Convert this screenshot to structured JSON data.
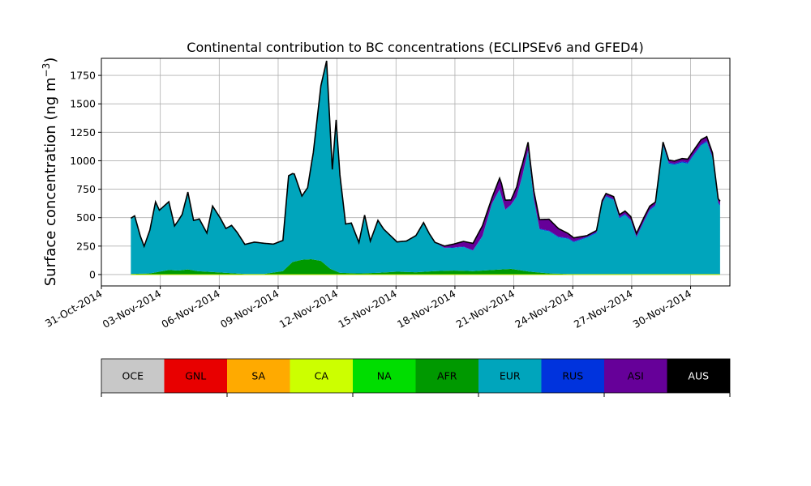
{
  "chart_data": {
    "type": "area",
    "stacked": true,
    "title": "Continental contribution to BC concentrations (ECLIPSEv6 and GFED4)",
    "ylabel_main": "Surface concentration (ng m",
    "ylabel_sup": "−3",
    "ylabel_end": ")",
    "xlim": [
      "2014-10-31",
      "2014-12-02"
    ],
    "ylim": [
      -100,
      1900
    ],
    "grid": true,
    "x_ticks": [
      "31-Oct-2014",
      "03-Nov-2014",
      "06-Nov-2014",
      "09-Nov-2014",
      "12-Nov-2014",
      "15-Nov-2014",
      "18-Nov-2014",
      "21-Nov-2014",
      "24-Nov-2014",
      "27-Nov-2014",
      "30-Nov-2014"
    ],
    "y_ticks": [
      0,
      250,
      500,
      750,
      1000,
      1250,
      1500,
      1750
    ],
    "x_start": "2014-11-01T12:00",
    "x_end": "2014-12-01T12:00",
    "total_outline_color": "#000000",
    "series": [
      {
        "name": "AFR",
        "color": "#009900",
        "points": [
          [
            0,
            5
          ],
          [
            1,
            10
          ],
          [
            1.5,
            25
          ],
          [
            2,
            40
          ],
          [
            2.5,
            35
          ],
          [
            3,
            45
          ],
          [
            3.5,
            30
          ],
          [
            4,
            25
          ],
          [
            5,
            15
          ],
          [
            6,
            5
          ],
          [
            7,
            5
          ],
          [
            8,
            30
          ],
          [
            8.5,
            110
          ],
          [
            9,
            130
          ],
          [
            9.5,
            135
          ],
          [
            10,
            120
          ],
          [
            10.5,
            50
          ],
          [
            11,
            15
          ],
          [
            12,
            10
          ],
          [
            13,
            15
          ],
          [
            14,
            25
          ],
          [
            15,
            20
          ],
          [
            16,
            30
          ],
          [
            17,
            35
          ],
          [
            18,
            30
          ],
          [
            19,
            40
          ],
          [
            20,
            50
          ],
          [
            21,
            25
          ],
          [
            22,
            10
          ],
          [
            23,
            5
          ],
          [
            24,
            5
          ],
          [
            25,
            5
          ],
          [
            26,
            5
          ],
          [
            27,
            5
          ],
          [
            28,
            5
          ],
          [
            29,
            5
          ],
          [
            30,
            5
          ]
        ]
      },
      {
        "name": "EUR",
        "color": "#00A5BC",
        "points": [
          [
            0,
            490
          ],
          [
            0.2,
            510
          ],
          [
            0.5,
            330
          ],
          [
            0.7,
            240
          ],
          [
            1,
            380
          ],
          [
            1.3,
            620
          ],
          [
            1.5,
            540
          ],
          [
            2,
            600
          ],
          [
            2.3,
            390
          ],
          [
            2.7,
            490
          ],
          [
            3,
            680
          ],
          [
            3.3,
            440
          ],
          [
            3.6,
            460
          ],
          [
            4,
            340
          ],
          [
            4.3,
            580
          ],
          [
            4.7,
            480
          ],
          [
            5,
            390
          ],
          [
            5.3,
            420
          ],
          [
            5.6,
            360
          ],
          [
            6,
            260
          ],
          [
            6.5,
            280
          ],
          [
            7,
            270
          ],
          [
            7.5,
            250
          ],
          [
            8,
            270
          ],
          [
            8.3,
            790
          ],
          [
            8.6,
            770
          ],
          [
            9,
            560
          ],
          [
            9.3,
            630
          ],
          [
            9.6,
            940
          ],
          [
            10,
            1540
          ],
          [
            10.3,
            1800
          ],
          [
            10.6,
            880
          ],
          [
            10.8,
            1330
          ],
          [
            11,
            860
          ],
          [
            11.3,
            430
          ],
          [
            11.6,
            440
          ],
          [
            12,
            270
          ],
          [
            12.3,
            510
          ],
          [
            12.6,
            280
          ],
          [
            13,
            460
          ],
          [
            13.3,
            380
          ],
          [
            14,
            260
          ],
          [
            14.5,
            270
          ],
          [
            15,
            320
          ],
          [
            15.4,
            430
          ],
          [
            15.7,
            330
          ],
          [
            16,
            250
          ],
          [
            16.5,
            200
          ],
          [
            17,
            200
          ],
          [
            17.5,
            210
          ],
          [
            18,
            180
          ],
          [
            18.5,
            300
          ],
          [
            19,
            580
          ],
          [
            19.4,
            700
          ],
          [
            19.7,
            520
          ],
          [
            20,
            560
          ],
          [
            20.3,
            640
          ],
          [
            20.6,
            830
          ],
          [
            20.9,
            1060
          ],
          [
            21.2,
            640
          ],
          [
            21.5,
            380
          ],
          [
            22,
            370
          ],
          [
            22.5,
            320
          ],
          [
            23,
            310
          ],
          [
            23.3,
            280
          ],
          [
            24,
            320
          ],
          [
            24.5,
            360
          ],
          [
            24.8,
            620
          ],
          [
            25,
            680
          ],
          [
            25.4,
            650
          ],
          [
            25.7,
            490
          ],
          [
            26,
            520
          ],
          [
            26.3,
            470
          ],
          [
            26.6,
            320
          ],
          [
            27,
            460
          ],
          [
            27.3,
            560
          ],
          [
            27.6,
            600
          ],
          [
            28,
            1130
          ],
          [
            28.3,
            970
          ],
          [
            28.6,
            960
          ],
          [
            29,
            980
          ],
          [
            29.3,
            970
          ],
          [
            29.6,
            1040
          ],
          [
            30,
            1130
          ],
          [
            30.3,
            1160
          ],
          [
            30.6,
            1020
          ],
          [
            30.9,
            620
          ],
          [
            31,
            600
          ]
        ]
      },
      {
        "name": "RUS",
        "color": "#0033DD",
        "points": [
          [
            0,
            0
          ],
          [
            10,
            0
          ],
          [
            20,
            5
          ],
          [
            30,
            10
          ],
          [
            31,
            10
          ]
        ]
      },
      {
        "name": "ASI",
        "color": "#660099",
        "points": [
          [
            0,
            0
          ],
          [
            16,
            0
          ],
          [
            17,
            30
          ],
          [
            18,
            60
          ],
          [
            18.5,
            90
          ],
          [
            19,
            50
          ],
          [
            19.5,
            110
          ],
          [
            20,
            40
          ],
          [
            20.5,
            110
          ],
          [
            21,
            60
          ],
          [
            22,
            100
          ],
          [
            23,
            40
          ],
          [
            24,
            10
          ],
          [
            25,
            20
          ],
          [
            26,
            25
          ],
          [
            27,
            30
          ],
          [
            28,
            20
          ],
          [
            29,
            25
          ],
          [
            30,
            40
          ],
          [
            31,
            30
          ]
        ]
      },
      {
        "name": "AUS",
        "color": "#000000",
        "points": [
          [
            0,
            0
          ],
          [
            31,
            0
          ]
        ]
      }
    ],
    "legend": {
      "placement": "bottom",
      "entries": [
        {
          "name": "OCE",
          "color": "#C8C8C8",
          "text_color": "#000000"
        },
        {
          "name": "GNL",
          "color": "#E80000",
          "text_color": "#000000"
        },
        {
          "name": "SA",
          "color": "#FFAA00",
          "text_color": "#000000"
        },
        {
          "name": "CA",
          "color": "#CCFF00",
          "text_color": "#000000"
        },
        {
          "name": "NA",
          "color": "#00DD00",
          "text_color": "#000000"
        },
        {
          "name": "AFR",
          "color": "#009900",
          "text_color": "#000000"
        },
        {
          "name": "EUR",
          "color": "#00A5BC",
          "text_color": "#000000"
        },
        {
          "name": "RUS",
          "color": "#0033DD",
          "text_color": "#000000"
        },
        {
          "name": "ASI",
          "color": "#660099",
          "text_color": "#000000"
        },
        {
          "name": "AUS",
          "color": "#000000",
          "text_color": "#FFFFFF"
        }
      ]
    }
  }
}
